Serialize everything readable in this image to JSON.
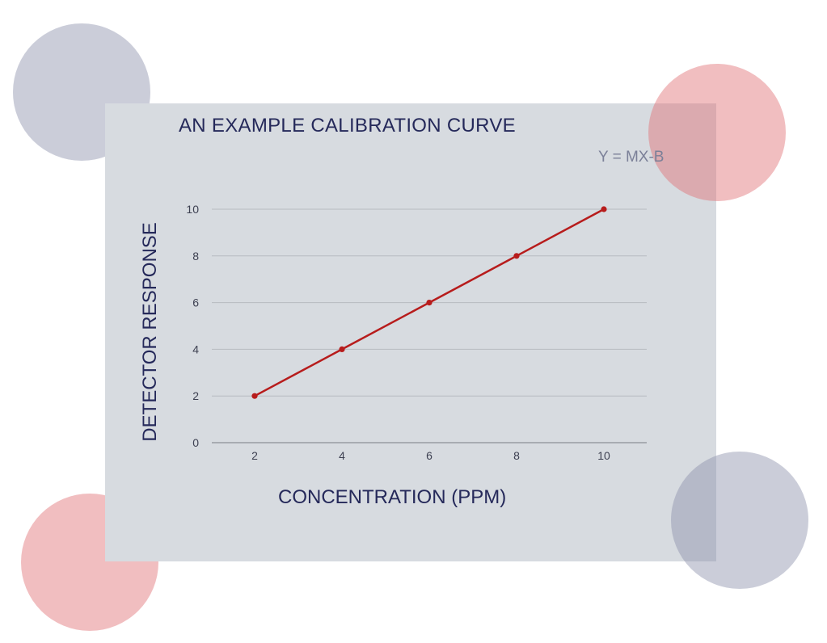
{
  "colors": {
    "panel": "#d7dbe0",
    "line": "#b71c1c",
    "text": "#25295a",
    "accent_pink": "#e16e73",
    "accent_navy": "#8c91aa"
  },
  "chart_data": {
    "type": "line",
    "title": "AN EXAMPLE CALIBRATION CURVE",
    "annotation": "Y = MX-B",
    "xlabel": "CONCENTRATION (PPM)",
    "ylabel": "DETECTOR RESPONSE",
    "x_ticks": [
      "2",
      "4",
      "6",
      "8",
      "10"
    ],
    "y_ticks": [
      "0",
      "2",
      "4",
      "6",
      "8",
      "10"
    ],
    "ylim": [
      0,
      10
    ],
    "grid": true,
    "legend": "none",
    "series": [
      {
        "x": [
          2,
          4,
          6,
          8,
          10
        ],
        "values": [
          2,
          4,
          6,
          8,
          10
        ],
        "color": "#b71c1c"
      }
    ]
  }
}
